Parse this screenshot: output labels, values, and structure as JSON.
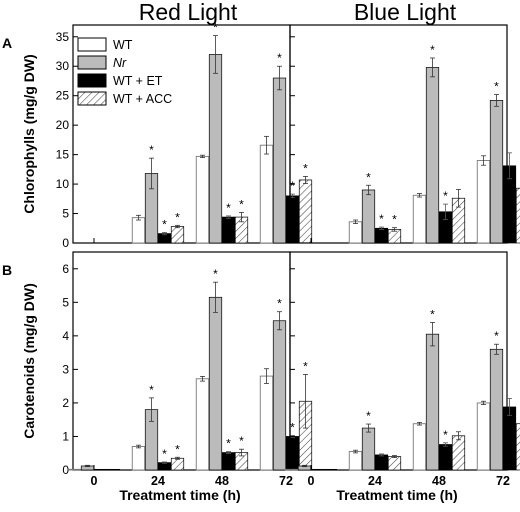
{
  "figure": {
    "columns": [
      "Red Light",
      "Blue Light"
    ],
    "rows": [
      "A",
      "B"
    ],
    "xlabel": "Treatment time (h)"
  },
  "legend": [
    {
      "name": "WT",
      "italic": false,
      "fill": "#ffffff"
    },
    {
      "name": "Nr",
      "italic": true,
      "fill": "#bbbbbb"
    },
    {
      "name": "WT + ET",
      "italic": false,
      "fill": "#000000"
    },
    {
      "name": "WT + ACC",
      "italic": false,
      "fill": "hatch"
    }
  ],
  "chart_data": [
    {
      "type": "bar",
      "panel": "A",
      "column": "Red Light",
      "ylabel": "Chlorophylls (mg/g DW)",
      "ylim": [
        0,
        37
      ],
      "yticks": [
        0,
        5,
        10,
        15,
        20,
        25,
        30,
        35
      ],
      "categories": [
        "0",
        "24",
        "48",
        "72"
      ],
      "series": [
        {
          "name": "WT",
          "values": [
            0,
            4.3,
            14.7,
            16.6
          ],
          "errors": [
            0,
            0.4,
            0.2,
            1.5
          ],
          "significant": [
            false,
            false,
            false,
            false
          ]
        },
        {
          "name": "Nr",
          "values": [
            0,
            11.8,
            32.0,
            28.0
          ],
          "errors": [
            0,
            2.6,
            3.2,
            2.0
          ],
          "significant": [
            false,
            true,
            true,
            true
          ]
        },
        {
          "name": "WT + ET",
          "values": [
            0,
            1.6,
            4.4,
            8.0
          ],
          "errors": [
            0,
            0.2,
            0.2,
            0.3
          ],
          "significant": [
            false,
            true,
            true,
            true
          ]
        },
        {
          "name": "WT + ACC",
          "values": [
            0,
            2.8,
            4.4,
            10.7
          ],
          "errors": [
            0,
            0.2,
            0.8,
            0.6
          ],
          "significant": [
            false,
            true,
            true,
            true
          ]
        }
      ]
    },
    {
      "type": "bar",
      "panel": "A",
      "column": "Blue Light",
      "ylabel": "Chlorophylls (mg/g DW)",
      "ylim": [
        0,
        37
      ],
      "yticks": [
        0,
        5,
        10,
        15,
        20,
        25,
        30,
        35
      ],
      "categories": [
        "0",
        "24",
        "48",
        "72"
      ],
      "series": [
        {
          "name": "WT",
          "values": [
            0,
            3.6,
            8.1,
            14.0
          ],
          "errors": [
            0,
            0.3,
            0.3,
            0.8
          ],
          "significant": [
            false,
            false,
            false,
            false
          ]
        },
        {
          "name": "Nr",
          "values": [
            0,
            9.0,
            29.8,
            24.2
          ],
          "errors": [
            0,
            0.8,
            1.6,
            1.0
          ],
          "significant": [
            false,
            true,
            true,
            true
          ]
        },
        {
          "name": "WT + ET",
          "values": [
            0,
            2.5,
            5.3,
            13.1
          ],
          "errors": [
            0,
            0.2,
            1.3,
            2.2
          ],
          "significant": [
            false,
            true,
            true,
            false
          ]
        },
        {
          "name": "WT + ACC",
          "values": [
            0,
            2.3,
            7.6,
            9.3
          ],
          "errors": [
            0,
            0.3,
            1.5,
            0.7
          ],
          "significant": [
            false,
            true,
            false,
            true
          ]
        }
      ]
    },
    {
      "type": "bar",
      "panel": "B",
      "column": "Red Light",
      "ylabel": "Carotenoids (mg/g DW)",
      "ylim": [
        0,
        6.5
      ],
      "yticks": [
        0,
        1,
        2,
        3,
        4,
        5,
        6
      ],
      "categories": [
        "0",
        "24",
        "48",
        "72"
      ],
      "series": [
        {
          "name": "WT",
          "values": [
            0.02,
            0.7,
            2.72,
            2.8
          ],
          "errors": [
            0.01,
            0.04,
            0.07,
            0.22
          ],
          "significant": [
            false,
            false,
            false,
            false
          ]
        },
        {
          "name": "Nr",
          "values": [
            0.12,
            1.8,
            5.15,
            4.45
          ],
          "errors": [
            0.02,
            0.35,
            0.45,
            0.27
          ],
          "significant": [
            false,
            true,
            true,
            true
          ]
        },
        {
          "name": "WT + ET",
          "values": [
            0.02,
            0.22,
            0.52,
            1.0
          ],
          "errors": [
            0.01,
            0.02,
            0.03,
            0.03
          ],
          "significant": [
            false,
            true,
            true,
            true
          ]
        },
        {
          "name": "WT + ACC",
          "values": [
            0.02,
            0.35,
            0.52,
            2.05
          ],
          "errors": [
            0.01,
            0.03,
            0.1,
            0.8
          ],
          "significant": [
            false,
            true,
            true,
            true
          ]
        }
      ]
    },
    {
      "type": "bar",
      "panel": "B",
      "column": "Blue Light",
      "ylabel": "Carotenoids (mg/g DW)",
      "ylim": [
        0,
        6.5
      ],
      "yticks": [
        0,
        1,
        2,
        3,
        4,
        5,
        6
      ],
      "categories": [
        "0",
        "24",
        "48",
        "72"
      ],
      "series": [
        {
          "name": "WT",
          "values": [
            0.02,
            0.55,
            1.38,
            2.0
          ],
          "errors": [
            0.01,
            0.04,
            0.04,
            0.05
          ],
          "significant": [
            false,
            false,
            false,
            false
          ]
        },
        {
          "name": "Nr",
          "values": [
            0.12,
            1.25,
            4.05,
            3.6
          ],
          "errors": [
            0.02,
            0.12,
            0.35,
            0.15
          ],
          "significant": [
            false,
            true,
            true,
            true
          ]
        },
        {
          "name": "WT + ET",
          "values": [
            0.02,
            0.45,
            0.76,
            1.88
          ],
          "errors": [
            0.01,
            0.03,
            0.05,
            0.25
          ],
          "significant": [
            false,
            false,
            true,
            false
          ]
        },
        {
          "name": "WT + ACC",
          "values": [
            0.02,
            0.4,
            1.02,
            1.38
          ],
          "errors": [
            0.01,
            0.03,
            0.12,
            0.1
          ],
          "significant": [
            false,
            false,
            false,
            true
          ]
        }
      ]
    }
  ]
}
